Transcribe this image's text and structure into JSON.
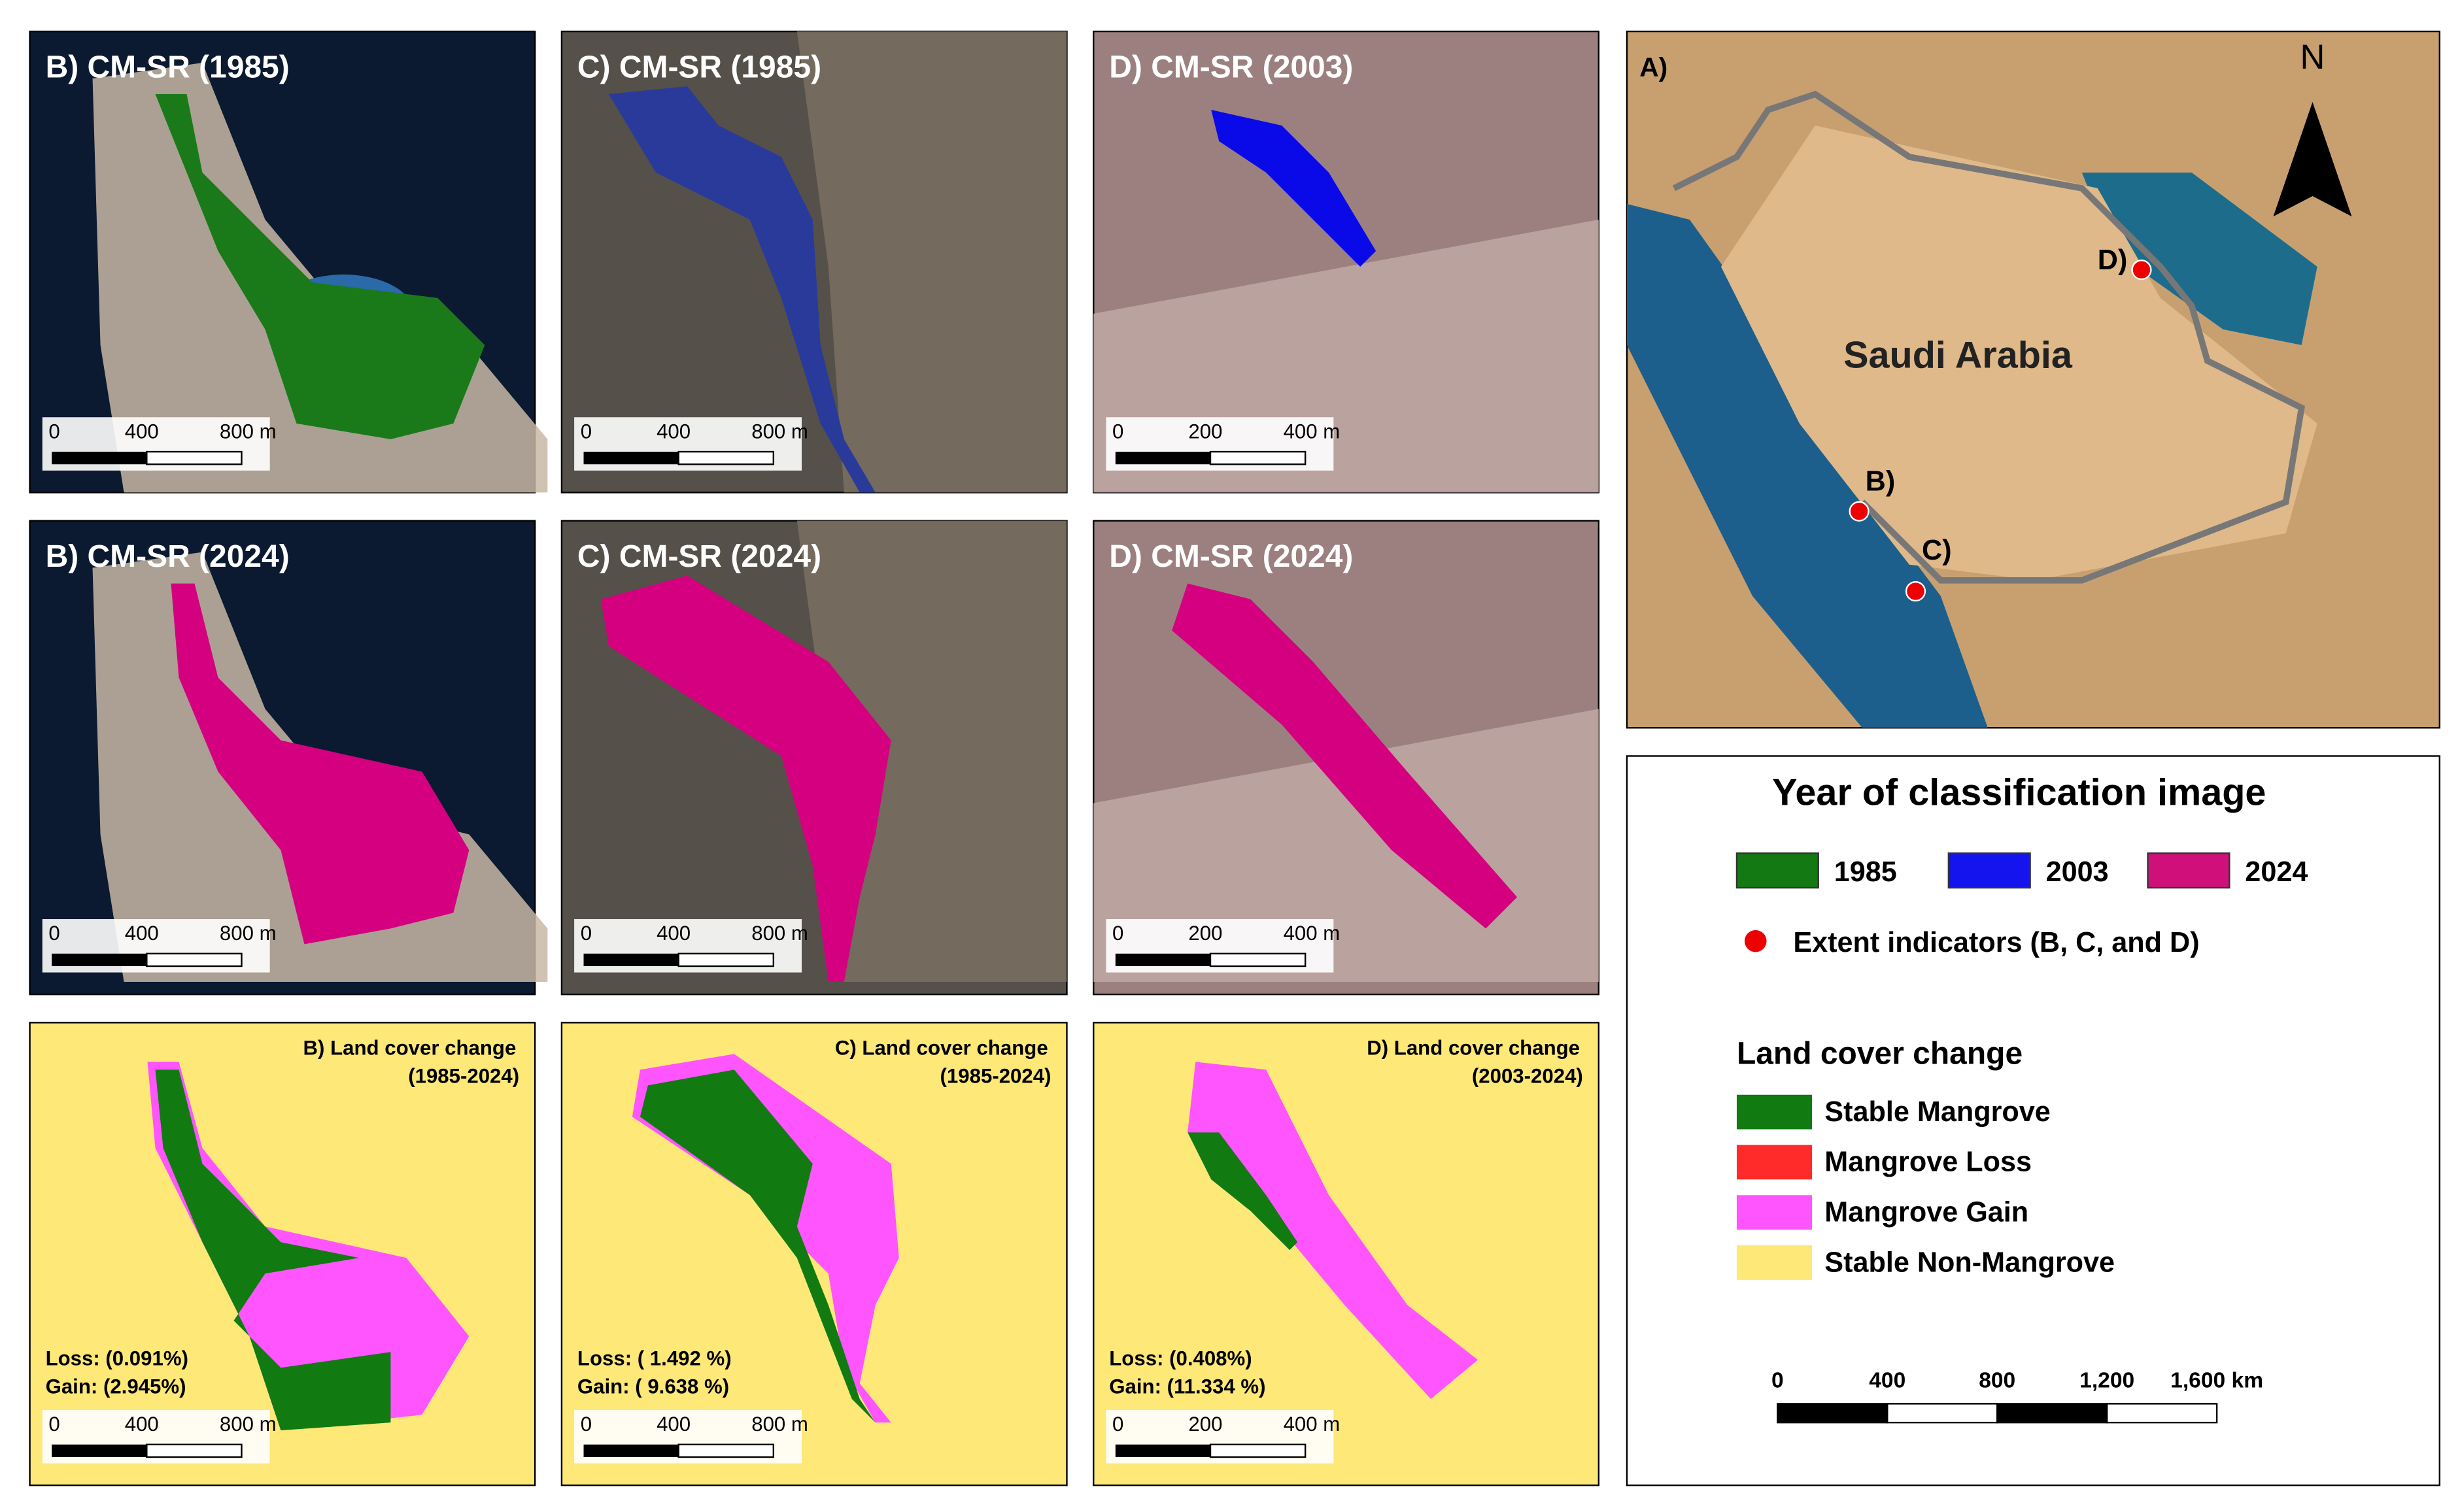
{
  "panels": [
    {
      "title": "B) CM-SR (1985)",
      "scale": [
        "0",
        "400",
        "800 m"
      ]
    },
    {
      "title": "C) CM-SR (1985)",
      "scale": [
        "0",
        "400",
        "800 m"
      ]
    },
    {
      "title": "D) CM-SR (2003)",
      "scale": [
        "0",
        "200",
        "400 m"
      ]
    },
    {
      "title": "B) CM-SR (2024)",
      "scale": [
        "0",
        "400",
        "800 m"
      ]
    },
    {
      "title": "C) CM-SR (2024)",
      "scale": [
        "0",
        "400",
        "800 m"
      ]
    },
    {
      "title": "D) CM-SR (2024)",
      "scale": [
        "0",
        "200",
        "400 m"
      ]
    }
  ],
  "change_panels": [
    {
      "title": "B) Land cover change",
      "period": "(1985-2024)",
      "loss": "Loss:  (0.091%)",
      "gain": "Gain:  (2.945%)",
      "scale": [
        "0",
        "400",
        "800 m"
      ]
    },
    {
      "title": "C) Land cover change",
      "period": "(1985-2024)",
      "loss": "Loss: ( 1.492 %)",
      "gain": "Gain: ( 9.638 %)",
      "scale": [
        "0",
        "400",
        "800 m"
      ]
    },
    {
      "title": "D) Land cover change",
      "period": "(2003-2024)",
      "loss": "Loss:  (0.408%)",
      "gain": "Gain: (11.334 %)",
      "scale": [
        "0",
        "200",
        "400 m"
      ]
    }
  ],
  "map": {
    "label": "A)",
    "north": "N",
    "country": "Saudi Arabia",
    "markers": [
      "B)",
      "C)",
      "D)"
    ]
  },
  "legend": {
    "title": "Year of classification image",
    "years": [
      "1985",
      "2003",
      "2024"
    ],
    "indicator": "Extent indicators (B, C, and  D)",
    "change_title": "Land cover change",
    "classes": [
      "Stable Mangrove",
      "Mangrove Loss",
      "Mangrove Gain",
      "Stable Non-Mangrove"
    ],
    "scale": [
      "0",
      "400",
      "800",
      "1,200",
      "1,600 km"
    ]
  }
}
